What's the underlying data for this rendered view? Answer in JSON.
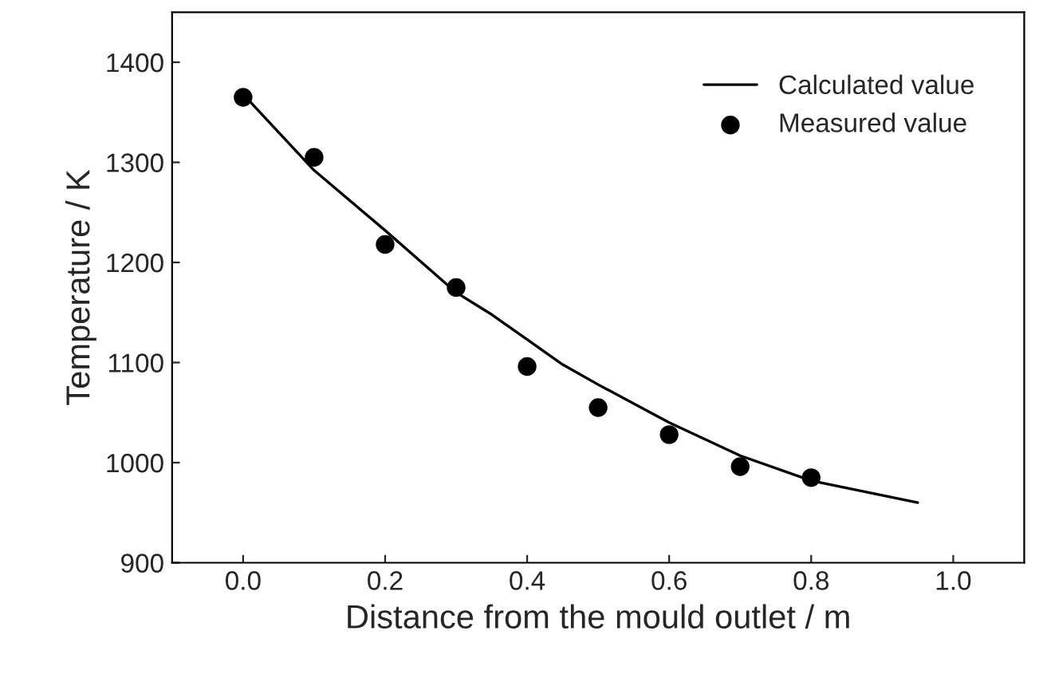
{
  "chart_data": {
    "type": "line",
    "xlabel": "Distance from the mould outlet / m",
    "ylabel": "Temperature / K",
    "xlim": [
      -0.1,
      1.1
    ],
    "xticks": [
      {
        "value": 0,
        "label": "0.0"
      },
      {
        "value": 0.2,
        "label": "0.2"
      },
      {
        "value": 0.4,
        "label": "0.4"
      },
      {
        "value": 0.6,
        "label": "0.6"
      },
      {
        "value": 0.8,
        "label": "0.8"
      },
      {
        "value": 1,
        "label": "1.0"
      }
    ],
    "ylim": [
      900,
      1450
    ],
    "yticks": [
      900,
      1000,
      1100,
      1200,
      1300,
      1400
    ],
    "grid": false,
    "legend": "top right",
    "series": [
      {
        "name": "Calculated value",
        "color": "#000000",
        "marker": "none",
        "line_style": "solid",
        "x": [
          0,
          0.1,
          0.2,
          0.3,
          0.35,
          0.4,
          0.45,
          0.5,
          0.6,
          0.7,
          0.8,
          0.95
        ],
        "values": [
          1368,
          1292,
          1232,
          1170,
          1148,
          1123,
          1098,
          1078,
          1040,
          1007,
          982,
          960
        ]
      },
      {
        "name": "Measured value",
        "type": "scatter",
        "color": "#000000",
        "marker": "circle",
        "x": [
          0,
          0.1,
          0.2,
          0.3,
          0.4,
          0.5,
          0.6,
          0.7,
          0.8
        ],
        "values": [
          1365,
          1305,
          1218,
          1175,
          1096,
          1055,
          1028,
          996,
          985
        ]
      }
    ]
  }
}
